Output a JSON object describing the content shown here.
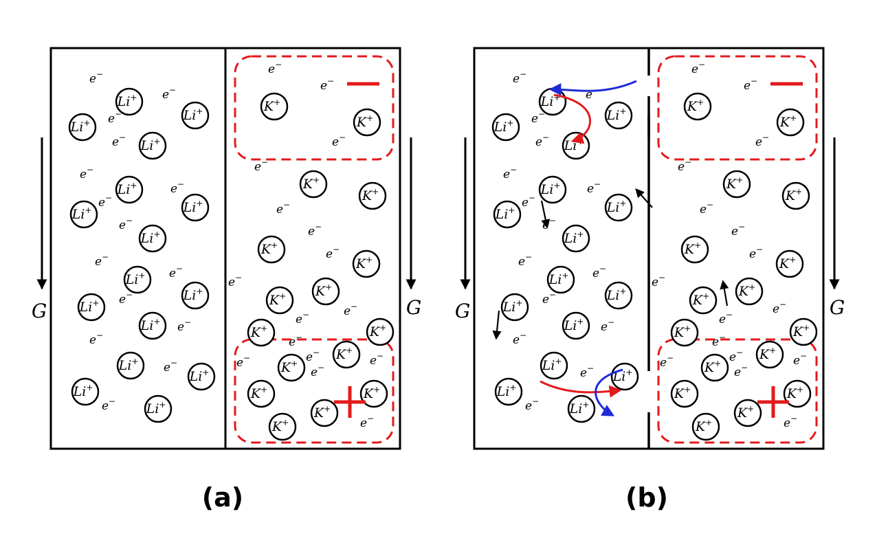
{
  "panels": [
    {
      "caption": "(a)",
      "gravity_label": "G",
      "ion_left": "Li",
      "ion_right": "K",
      "charge_plus": "+",
      "electron": "e",
      "charge_minus": "−",
      "leaky_wall": false
    },
    {
      "caption": "(b)",
      "gravity_label": "G",
      "ion_left": "Li",
      "ion_right": "K",
      "charge_plus": "+",
      "electron": "e",
      "charge_minus": "−",
      "leaky_wall": true
    }
  ],
  "colors": {
    "outline": "#000000",
    "region_dash": "#e31a1c",
    "plus_sign": "#e31a1c",
    "minus_sign": "#e31a1c",
    "arrow_red": "#e31a1c",
    "arrow_blue": "#1f2bd6"
  }
}
